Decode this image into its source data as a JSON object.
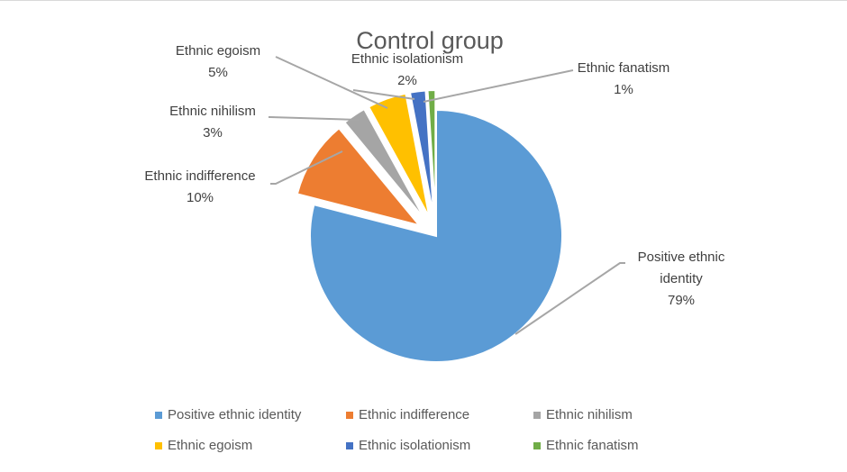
{
  "chart_data": {
    "type": "pie",
    "title": "Control group",
    "slices": [
      {
        "label": "Positive ethnic identity",
        "value": 79,
        "display_label": [
          "Positive ethnic",
          "identity"
        ],
        "value_label": "79%",
        "color": "#5b9bd5"
      },
      {
        "label": "Ethnic indifference",
        "value": 10,
        "display_label": [
          "Ethnic indifference"
        ],
        "value_label": "10%",
        "color": "#ed7d31"
      },
      {
        "label": "Ethnic nihilism",
        "value": 3,
        "display_label": [
          "Ethnic nihilism"
        ],
        "value_label": "3%",
        "color": "#a5a5a5"
      },
      {
        "label": "Ethnic egoism",
        "value": 5,
        "display_label": [
          "Ethnic egoism"
        ],
        "value_label": "5%",
        "color": "#ffc000"
      },
      {
        "label": "Ethnic isolationism",
        "value": 2,
        "display_label": [
          "Ethnic isolationism"
        ],
        "value_label": "2%",
        "color": "#4472c4"
      },
      {
        "label": "Ethnic fanatism",
        "value": 1,
        "display_label": [
          "Ethnic fanatism"
        ],
        "value_label": "1%",
        "color": "#70ad47"
      }
    ],
    "legend_position": "bottom"
  }
}
